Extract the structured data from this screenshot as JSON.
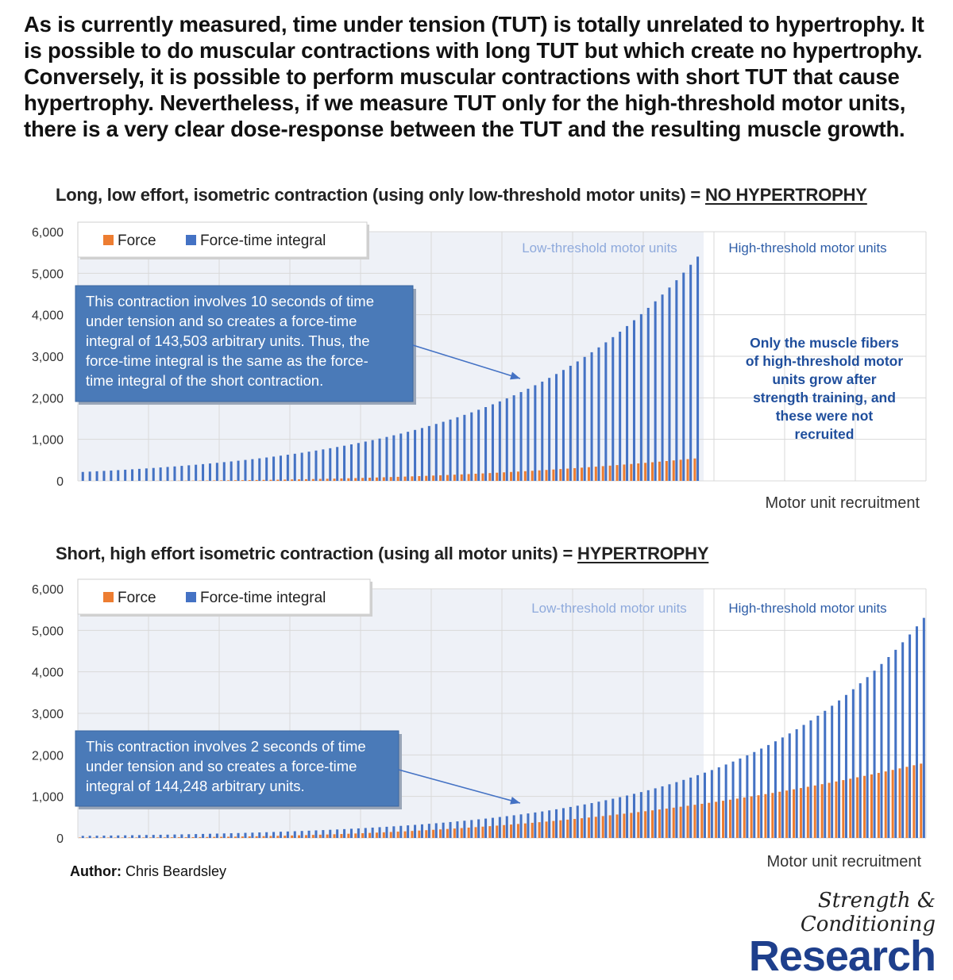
{
  "headline": "As is currently measured, time under tension (TUT) is totally unrelated to hypertrophy. It is possible to do muscular contractions with long TUT but which create no hypertrophy. Conversely, it is possible to perform muscular contractions with short TUT that cause hypertrophy. Nevertheless, if we measure TUT only for the high-threshold motor units, there is a very clear dose-response between the TUT and the resulting muscle growth.",
  "charts": [
    {
      "title_prefix": "Long, low effort, isometric contraction (using only low-threshold motor units) = ",
      "title_emphasis": "NO HYPERTROPHY"
    },
    {
      "title_prefix": "Short, high effort isometric contraction (using all motor units) = ",
      "title_emphasis": "HYPERTROPHY"
    }
  ],
  "author": {
    "label": "Author:",
    "name": "Chris Beardsley"
  },
  "logo": {
    "script": "Strength & Conditioning",
    "name": "Research"
  },
  "colors": {
    "force": "#ed7d31",
    "integral": "#4472c4",
    "region_shade": "#eef1f7",
    "callout_bg": "#4a7ab8",
    "note_text": "#1f4e9c",
    "low_label": "#8faadc",
    "high_label": "#2f5ea8"
  },
  "chart_data": [
    {
      "type": "bar",
      "title": "Long, low effort, isometric contraction (using only low-threshold motor units) = NO HYPERTROPHY",
      "xlabel": "Motor unit recruitment",
      "ylabel": "",
      "ylim": [
        0,
        6000
      ],
      "yticks": [
        "0",
        "1,000",
        "2,000",
        "3,000",
        "4,000",
        "5,000",
        "6,000"
      ],
      "legend": [
        "Force",
        "Force-time integral"
      ],
      "legend_position": "top-left",
      "region_labels": {
        "low": "Low-threshold motor units",
        "high": "High-threshold motor units"
      },
      "n_units": 120,
      "bars_drawn": 88,
      "series": [
        {
          "name": "Force",
          "start": 0,
          "end": 540
        },
        {
          "name": "Force-time integral",
          "start": 215,
          "end": 5400
        }
      ],
      "callout": [
        "This contraction involves 10 seconds of time",
        "under tension and so creates a force-time",
        "integral of 143,503 arbitrary units. Thus, the",
        "force-time integral is the same as the force-",
        "time integral of the short contraction."
      ],
      "note": [
        "Only the muscle fibers",
        "of high-threshold motor",
        "units grow after",
        "strength training, and",
        "these were not",
        "recruited"
      ],
      "grid": true
    },
    {
      "type": "bar",
      "title": "Short, high effort isometric contraction (using all motor units) = HYPERTROPHY",
      "xlabel": "Motor unit recruitment",
      "ylabel": "",
      "ylim": [
        0,
        6000
      ],
      "yticks": [
        "0",
        "1,000",
        "2,000",
        "3,000",
        "4,000",
        "5,000",
        "6,000"
      ],
      "legend": [
        "Force",
        "Force-time integral"
      ],
      "legend_position": "top-left",
      "region_labels": {
        "low": "Low-threshold motor units",
        "high": "High-threshold motor units"
      },
      "n_units": 120,
      "bars_drawn": 120,
      "series": [
        {
          "name": "Force",
          "start": 10,
          "end": 1790
        },
        {
          "name": "Force-time integral",
          "start": 50,
          "end": 5300
        }
      ],
      "callout": [
        "This contraction involves 2 seconds of time",
        "under tension and so creates a force-time",
        "integral of 144,248 arbitrary units."
      ],
      "note": [],
      "grid": true
    }
  ]
}
